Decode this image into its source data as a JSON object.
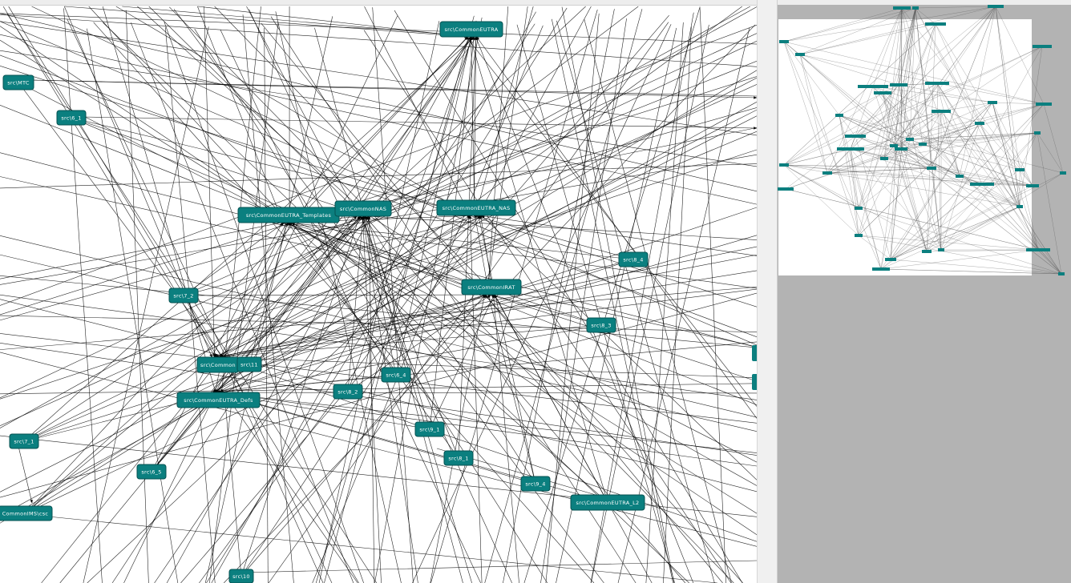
{
  "main_graph": {
    "nodes": [
      {
        "id": "mtc",
        "label": "src\\MTC"
      },
      {
        "id": "s6_1",
        "label": "src\\6_1"
      },
      {
        "id": "ceutra",
        "label": "src\\CommonEUTRA"
      },
      {
        "id": "tmpl",
        "label": "src\\CommonEUTRA_Templates"
      },
      {
        "id": "nas",
        "label": "src\\CommonNAS"
      },
      {
        "id": "enas",
        "label": "src\\CommonEUTRA_NAS"
      },
      {
        "id": "s8_4",
        "label": "src\\8_4"
      },
      {
        "id": "rat",
        "label": "src\\CommonIRAT"
      },
      {
        "id": "s7_2",
        "label": "src\\7_2"
      },
      {
        "id": "s8_3",
        "label": "src\\8_3"
      },
      {
        "id": "common",
        "label": "src\\Common"
      },
      {
        "id": "s11",
        "label": "src\\11"
      },
      {
        "id": "s6_4",
        "label": "src\\6_4"
      },
      {
        "id": "defs",
        "label": "src\\CommonEUTRA_Defs"
      },
      {
        "id": "s8_2",
        "label": "src\\8_2"
      },
      {
        "id": "s9_1",
        "label": "src\\9_1"
      },
      {
        "id": "s7_1",
        "label": "src\\7_1"
      },
      {
        "id": "s8_1",
        "label": "src\\8_1"
      },
      {
        "id": "s6_5",
        "label": "src\\6_5"
      },
      {
        "id": "s9_4",
        "label": "src\\9_4"
      },
      {
        "id": "l2",
        "label": "src\\CommonEUTRA_L2"
      },
      {
        "id": "ims",
        "label": "CommonIMS\\csc"
      },
      {
        "id": "s10",
        "label": "src\\10"
      }
    ]
  },
  "colors": {
    "node_fill": "#0b7f7f",
    "node_border": "#055050",
    "edge": "#000000",
    "overview_bg": "#b3b3b3",
    "overview_viewport": "#ffffff"
  }
}
